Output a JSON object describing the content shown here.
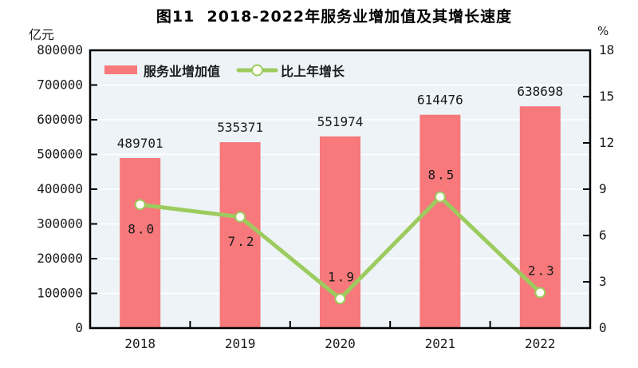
{
  "chart_data": {
    "type": "combo",
    "title": "图11  2018-2022年服务业增加值及其增长速度",
    "categories": [
      "2018",
      "2019",
      "2020",
      "2021",
      "2022"
    ],
    "series": [
      {
        "name": "服务业增加值",
        "type": "bar",
        "axis": "left",
        "color": "#F7797B",
        "values": [
          489701,
          535371,
          551974,
          614476,
          638698
        ]
      },
      {
        "name": "比上年增长",
        "type": "line",
        "axis": "right",
        "color": "#9CCB5E",
        "marker_fill": "#FFFEF4",
        "values": [
          8.0,
          7.2,
          1.9,
          8.5,
          2.3
        ],
        "label_positions": [
          "below",
          "below",
          "above",
          "above",
          "above"
        ]
      }
    ],
    "left_axis": {
      "unit": "亿元",
      "min": 0,
      "max": 800000,
      "step": 100000,
      "tick_labels": [
        "0",
        "100000",
        "200000",
        "300000",
        "400000",
        "500000",
        "600000",
        "700000",
        "800000"
      ]
    },
    "right_axis": {
      "unit": "%",
      "min": 0,
      "max": 18,
      "step": 3,
      "tick_labels": [
        "0",
        "3",
        "6",
        "9",
        "12",
        "15",
        "18"
      ]
    },
    "grid": "horizontal-white-lines",
    "legend_position": "top-left-inside",
    "colors": {
      "plot_bg": "#EDF3F6",
      "grid": "#FFFFFF",
      "axis": "#000000",
      "text": "#1A1A1A"
    }
  }
}
